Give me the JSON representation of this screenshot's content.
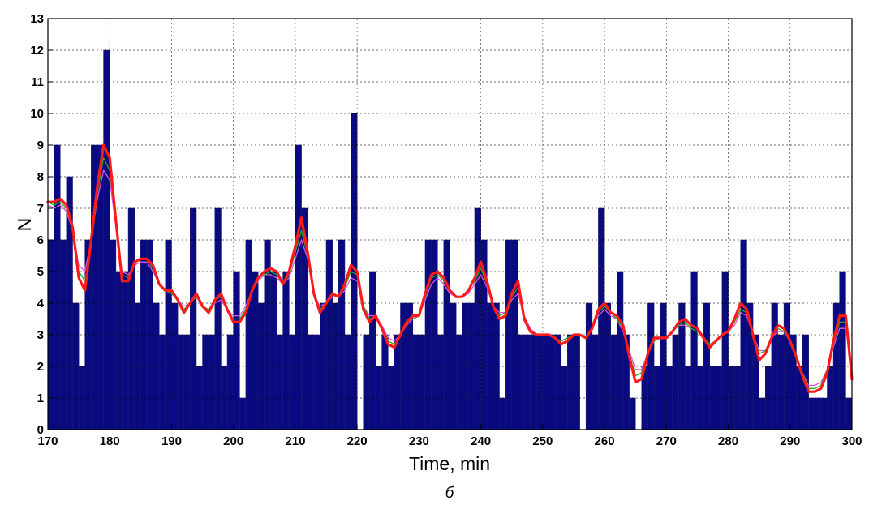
{
  "chart_data": {
    "type": "bar",
    "title": "",
    "xlabel": "Time, min",
    "ylabel": "N",
    "caption": "б",
    "xlim": [
      170,
      300
    ],
    "ylim": [
      0,
      13
    ],
    "xticks": [
      170,
      180,
      190,
      200,
      210,
      220,
      230,
      240,
      250,
      260,
      270,
      280,
      290,
      300
    ],
    "yticks": [
      0,
      1,
      2,
      3,
      4,
      5,
      6,
      7,
      8,
      9,
      10,
      11,
      12,
      13
    ],
    "grid": true,
    "colors": {
      "bars": "#0a0a80",
      "smooth_red": "#ff1a1a",
      "smooth_green": "#22aa22",
      "smooth_magenta": "#dd55dd"
    },
    "bars": {
      "x": [
        170,
        171,
        172,
        173,
        174,
        175,
        176,
        177,
        178,
        179,
        180,
        181,
        182,
        183,
        184,
        185,
        186,
        187,
        188,
        189,
        190,
        191,
        192,
        193,
        194,
        195,
        196,
        197,
        198,
        199,
        200,
        201,
        202,
        203,
        204,
        205,
        206,
        207,
        208,
        209,
        210,
        211,
        212,
        213,
        214,
        215,
        216,
        217,
        218,
        219,
        220,
        221,
        222,
        223,
        224,
        225,
        226,
        227,
        228,
        229,
        230,
        231,
        232,
        233,
        234,
        235,
        236,
        237,
        238,
        239,
        240,
        241,
        242,
        243,
        244,
        245,
        246,
        247,
        248,
        249,
        250,
        251,
        252,
        253,
        254,
        255,
        256,
        257,
        258,
        259,
        260,
        261,
        262,
        263,
        264,
        265,
        266,
        267,
        268,
        269,
        270,
        271,
        272,
        273,
        274,
        275,
        276,
        277,
        278,
        279,
        280,
        281,
        282,
        283,
        284,
        285,
        286,
        287,
        288,
        289,
        290,
        291,
        292,
        293,
        294,
        295,
        296,
        297,
        298,
        299
      ],
      "values": [
        6,
        9,
        6,
        8,
        4,
        2,
        6,
        9,
        9,
        12,
        6,
        5,
        5,
        7,
        4,
        6,
        6,
        4,
        3,
        6,
        4,
        3,
        3,
        7,
        2,
        3,
        3,
        7,
        2,
        3,
        5,
        1,
        6,
        5,
        4,
        6,
        5,
        3,
        5,
        3,
        9,
        7,
        3,
        3,
        4,
        6,
        4,
        6,
        3,
        10,
        0,
        3,
        5,
        2,
        3,
        2,
        3,
        4,
        4,
        3,
        3,
        6,
        6,
        3,
        6,
        4,
        3,
        4,
        4,
        7,
        6,
        4,
        4,
        1,
        6,
        6,
        3,
        3,
        3,
        3,
        3,
        3,
        3,
        2,
        3,
        3,
        0,
        4,
        3,
        7,
        4,
        3,
        5,
        3,
        1,
        0,
        2,
        4,
        2,
        4,
        2,
        3,
        4,
        2,
        5,
        2,
        4,
        2,
        2,
        5,
        2,
        2,
        6,
        4,
        3,
        1,
        2,
        4,
        3,
        4,
        3,
        2,
        3,
        1,
        1,
        1,
        2,
        4,
        5,
        1
      ]
    },
    "series": [
      {
        "color": "#ff1a1a",
        "x": [
          170,
          171,
          172,
          173,
          174,
          175,
          176,
          177,
          178,
          179,
          180,
          181,
          182,
          183,
          184,
          185,
          186,
          187,
          188,
          189,
          190,
          191,
          192,
          193,
          194,
          195,
          196,
          197,
          198,
          199,
          200,
          201,
          202,
          203,
          204,
          205,
          206,
          207,
          208,
          209,
          210,
          211,
          212,
          213,
          214,
          215,
          216,
          217,
          218,
          219,
          220,
          221,
          222,
          223,
          224,
          225,
          226,
          227,
          228,
          229,
          230,
          231,
          232,
          233,
          234,
          235,
          236,
          237,
          238,
          239,
          240,
          241,
          242,
          243,
          244,
          245,
          246,
          247,
          248,
          249,
          250,
          251,
          252,
          253,
          254,
          255,
          256,
          257,
          258,
          259,
          260,
          261,
          262,
          263,
          264,
          265,
          266,
          267,
          268,
          269,
          270,
          271,
          272,
          273,
          274,
          275,
          276,
          277,
          278,
          279,
          280,
          281,
          282,
          283,
          284,
          285,
          286,
          287,
          288,
          289,
          290,
          291,
          292,
          293,
          294,
          295,
          296,
          297,
          298,
          299,
          300
        ],
        "values": [
          7.2,
          7.2,
          7.3,
          7.1,
          6.4,
          4.8,
          4.4,
          6.0,
          7.7,
          9.0,
          8.6,
          6.6,
          4.7,
          4.7,
          5.3,
          5.4,
          5.4,
          5.2,
          4.6,
          4.4,
          4.4,
          4.1,
          3.7,
          4.0,
          4.3,
          3.9,
          3.7,
          4.1,
          4.3,
          3.8,
          3.4,
          3.4,
          3.7,
          4.4,
          4.8,
          5.0,
          5.1,
          5.0,
          4.6,
          5.0,
          5.8,
          6.7,
          5.6,
          4.3,
          3.7,
          4.0,
          4.3,
          4.2,
          4.6,
          5.2,
          5.0,
          3.8,
          3.4,
          3.6,
          3.2,
          2.7,
          2.6,
          3.0,
          3.4,
          3.6,
          3.6,
          4.3,
          4.9,
          5.0,
          4.8,
          4.4,
          4.2,
          4.2,
          4.4,
          4.8,
          5.3,
          4.7,
          3.9,
          3.5,
          3.6,
          4.3,
          4.7,
          3.5,
          3.1,
          3.0,
          3.0,
          3.0,
          2.9,
          2.7,
          2.8,
          3.0,
          3.0,
          2.9,
          3.2,
          3.8,
          4.0,
          3.7,
          3.6,
          3.3,
          2.3,
          1.5,
          1.6,
          2.4,
          2.9,
          2.9,
          2.9,
          3.1,
          3.4,
          3.5,
          3.3,
          3.2,
          2.9,
          2.6,
          2.8,
          3.0,
          3.1,
          3.5,
          4.0,
          3.8,
          3.0,
          2.2,
          2.4,
          2.9,
          3.3,
          3.2,
          2.8,
          2.3,
          1.7,
          1.2,
          1.2,
          1.3,
          1.8,
          2.8,
          3.6,
          3.6,
          1.6
        ]
      },
      {
        "color": "#22aa22",
        "x": [
          170,
          171,
          172,
          173,
          174,
          175,
          176,
          177,
          178,
          179,
          180,
          181,
          182,
          183,
          184,
          185,
          186,
          187,
          188,
          189,
          190,
          191,
          192,
          193,
          194,
          195,
          196,
          197,
          198,
          199,
          200,
          201,
          202,
          203,
          204,
          205,
          206,
          207,
          208,
          209,
          210,
          211,
          212,
          213,
          214,
          215,
          216,
          217,
          218,
          219,
          220,
          221,
          222,
          223,
          224,
          225,
          226,
          227,
          228,
          229,
          230,
          231,
          232,
          233,
          234,
          235,
          236,
          237,
          238,
          239,
          240,
          241,
          242,
          243,
          244,
          245,
          246,
          247,
          248,
          249,
          250,
          251,
          252,
          253,
          254,
          255,
          256,
          257,
          258,
          259,
          260,
          261,
          262,
          263,
          264,
          265,
          266,
          267,
          268,
          269,
          270,
          271,
          272,
          273,
          274,
          275,
          276,
          277,
          278,
          279,
          280,
          281,
          282,
          283,
          284,
          285,
          286,
          287,
          288,
          289,
          290,
          291,
          292,
          293,
          294,
          295,
          296,
          297,
          298,
          299,
          300
        ],
        "values": [
          7.2,
          7.1,
          7.2,
          7.0,
          6.4,
          5.0,
          4.7,
          6.0,
          7.5,
          8.6,
          8.2,
          6.5,
          4.9,
          4.8,
          5.3,
          5.4,
          5.4,
          5.1,
          4.6,
          4.4,
          4.3,
          4.1,
          3.8,
          4.0,
          4.2,
          3.9,
          3.8,
          4.1,
          4.2,
          3.8,
          3.5,
          3.5,
          3.8,
          4.4,
          4.8,
          4.9,
          5.0,
          4.9,
          4.6,
          4.9,
          5.6,
          6.3,
          5.5,
          4.3,
          3.8,
          4.0,
          4.3,
          4.2,
          4.5,
          5.0,
          4.9,
          3.9,
          3.5,
          3.6,
          3.2,
          2.8,
          2.7,
          3.0,
          3.4,
          3.5,
          3.6,
          4.2,
          4.8,
          4.9,
          4.7,
          4.4,
          4.2,
          4.2,
          4.4,
          4.7,
          5.1,
          4.6,
          3.9,
          3.6,
          3.7,
          4.2,
          4.5,
          3.6,
          3.1,
          3.0,
          3.0,
          3.0,
          2.9,
          2.8,
          2.9,
          3.0,
          3.0,
          2.9,
          3.2,
          3.7,
          3.9,
          3.7,
          3.5,
          3.2,
          2.4,
          1.7,
          1.8,
          2.4,
          2.8,
          2.9,
          2.9,
          3.1,
          3.3,
          3.4,
          3.2,
          3.1,
          2.9,
          2.7,
          2.8,
          3.0,
          3.1,
          3.4,
          3.8,
          3.7,
          3.0,
          2.4,
          2.5,
          2.9,
          3.2,
          3.1,
          2.8,
          2.3,
          1.8,
          1.3,
          1.3,
          1.4,
          1.9,
          2.7,
          3.4,
          3.4,
          1.8
        ]
      },
      {
        "color": "#dd55dd",
        "x": [
          170,
          171,
          172,
          173,
          174,
          175,
          176,
          177,
          178,
          179,
          180,
          181,
          182,
          183,
          184,
          185,
          186,
          187,
          188,
          189,
          190,
          191,
          192,
          193,
          194,
          195,
          196,
          197,
          198,
          199,
          200,
          201,
          202,
          203,
          204,
          205,
          206,
          207,
          208,
          209,
          210,
          211,
          212,
          213,
          214,
          215,
          216,
          217,
          218,
          219,
          220,
          221,
          222,
          223,
          224,
          225,
          226,
          227,
          228,
          229,
          230,
          231,
          232,
          233,
          234,
          235,
          236,
          237,
          238,
          239,
          240,
          241,
          242,
          243,
          244,
          245,
          246,
          247,
          248,
          249,
          250,
          251,
          252,
          253,
          254,
          255,
          256,
          257,
          258,
          259,
          260,
          261,
          262,
          263,
          264,
          265,
          266,
          267,
          268,
          269,
          270,
          271,
          272,
          273,
          274,
          275,
          276,
          277,
          278,
          279,
          280,
          281,
          282,
          283,
          284,
          285,
          286,
          287,
          288,
          289,
          290,
          291,
          292,
          293,
          294,
          295,
          296,
          297,
          298,
          299,
          300
        ],
        "values": [
          7.1,
          7.0,
          7.1,
          6.9,
          6.3,
          5.2,
          5.0,
          6.0,
          7.3,
          8.2,
          7.9,
          6.4,
          5.0,
          4.9,
          5.2,
          5.3,
          5.3,
          5.0,
          4.6,
          4.4,
          4.3,
          4.1,
          3.9,
          4.0,
          4.2,
          3.9,
          3.8,
          4.0,
          4.1,
          3.8,
          3.6,
          3.6,
          3.9,
          4.4,
          4.7,
          4.9,
          4.9,
          4.8,
          4.6,
          4.8,
          5.4,
          6.0,
          5.4,
          4.3,
          3.9,
          4.0,
          4.2,
          4.2,
          4.4,
          4.8,
          4.7,
          3.9,
          3.6,
          3.6,
          3.3,
          2.9,
          2.8,
          3.0,
          3.3,
          3.5,
          3.6,
          4.1,
          4.6,
          4.8,
          4.6,
          4.3,
          4.2,
          4.2,
          4.3,
          4.6,
          4.9,
          4.5,
          3.9,
          3.7,
          3.7,
          4.1,
          4.3,
          3.6,
          3.2,
          3.0,
          3.0,
          3.0,
          2.9,
          2.8,
          2.9,
          3.0,
          3.0,
          2.9,
          3.2,
          3.6,
          3.8,
          3.6,
          3.5,
          3.1,
          2.5,
          1.9,
          1.9,
          2.4,
          2.8,
          2.9,
          2.9,
          3.1,
          3.3,
          3.3,
          3.2,
          3.1,
          2.9,
          2.7,
          2.8,
          3.0,
          3.1,
          3.3,
          3.7,
          3.6,
          3.0,
          2.5,
          2.5,
          2.9,
          3.1,
          3.1,
          2.8,
          2.3,
          1.8,
          1.4,
          1.4,
          1.5,
          1.9,
          2.6,
          3.2,
          3.2,
          1.9
        ]
      }
    ]
  }
}
